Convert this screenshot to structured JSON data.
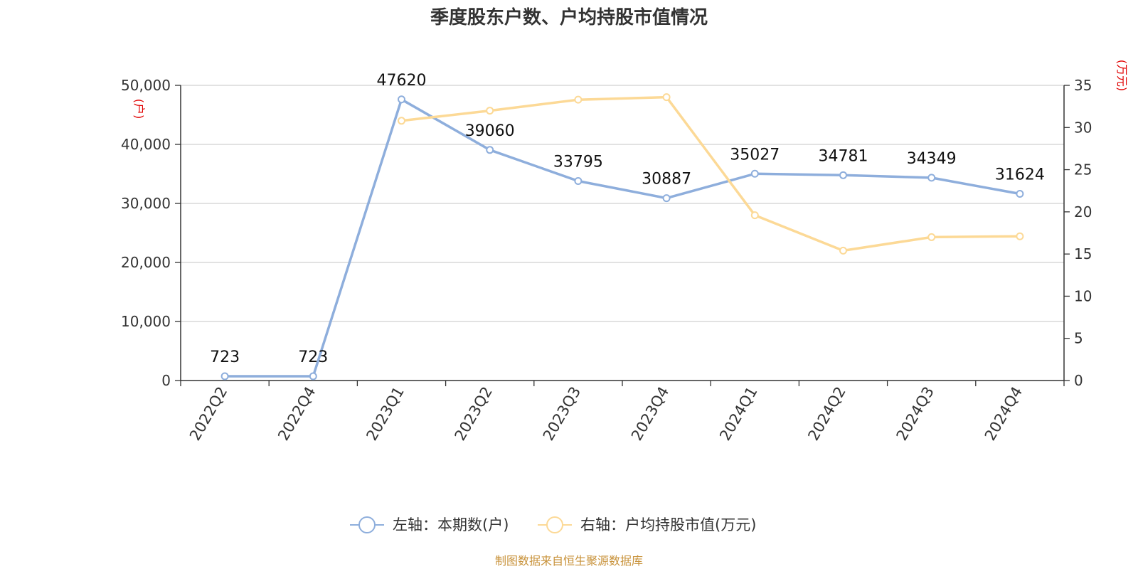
{
  "chart_data": {
    "type": "line",
    "title": "季度股东户数、户均持股市值情况",
    "categories": [
      "2022Q2",
      "2022Q4",
      "2023Q1",
      "2023Q2",
      "2023Q3",
      "2023Q4",
      "2024Q1",
      "2024Q2",
      "2024Q3",
      "2024Q4"
    ],
    "left_axis": {
      "unit": "(户)",
      "min": 0,
      "max": 50000,
      "interval": 10000,
      "tick_labels": [
        "0",
        "10,000",
        "20,000",
        "30,000",
        "40,000",
        "50,000"
      ]
    },
    "right_axis": {
      "unit": "(万元)",
      "min": 0,
      "max": 35,
      "interval": 5,
      "tick_labels": [
        "0",
        "5",
        "10",
        "15",
        "20",
        "25",
        "30",
        "35"
      ]
    },
    "grid": true,
    "legend_position": "bottom",
    "series": [
      {
        "name": "左轴：本期数(户)",
        "axis": "left",
        "color": "#8eaedc",
        "values": [
          723,
          723,
          47620,
          39060,
          33795,
          30887,
          35027,
          34781,
          34349,
          31624
        ],
        "labels": [
          "723",
          "723",
          "47620",
          "39060",
          "33795",
          "30887",
          "35027",
          "34781",
          "34349",
          "31624"
        ]
      },
      {
        "name": "右轴：户均持股市值(万元)",
        "axis": "right",
        "color": "#fcd996",
        "values": [
          null,
          null,
          30.8,
          32.0,
          33.3,
          33.6,
          19.6,
          15.4,
          17.0,
          17.1
        ]
      }
    ],
    "source": "制图数据来自恒生聚源数据库"
  }
}
